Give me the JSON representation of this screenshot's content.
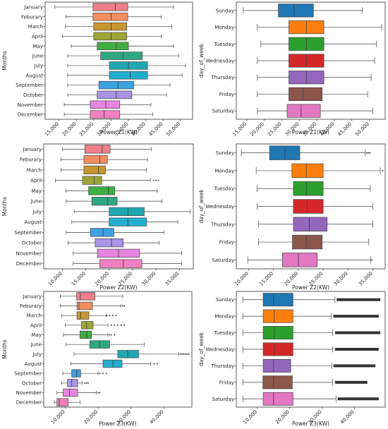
{
  "figure": {
    "background": "#ffffff"
  },
  "palette": {
    "month": [
      "#ee7f89",
      "#f18f5f",
      "#c7972f",
      "#9da537",
      "#3fae43",
      "#2ea882",
      "#20a8b0",
      "#22aecf",
      "#3ba2e0",
      "#a994e8",
      "#e686e0",
      "#f27fbf"
    ],
    "weekday": [
      "#1f77b4",
      "#ff7f0e",
      "#2ca02c",
      "#d62728",
      "#9467bd",
      "#8c564b",
      "#e377c2"
    ]
  },
  "chart_data": [
    {
      "id": "p1",
      "type": "boxplot",
      "orientation": "horizontal",
      "xlabel": "Power Z1(KW)",
      "ylabel": "Months",
      "xlim": [
        11000,
        53500
      ],
      "xticks": [
        15000,
        20000,
        25000,
        30000,
        35000,
        40000,
        45000,
        50000
      ],
      "xtick_labels": [
        "15,000",
        "20,000",
        "25,000",
        "30,000",
        "35,000",
        "40,000",
        "45,000",
        "50,000"
      ],
      "categories": [
        "January",
        "Feburary",
        "March",
        "April",
        "May",
        "June",
        "July",
        "August",
        "September",
        "October",
        "November",
        "December"
      ],
      "boxes": [
        {
          "whislo": 13800,
          "q1": 24800,
          "med": 31200,
          "q3": 34800,
          "whishi": 48000
        },
        {
          "whislo": 17000,
          "q1": 24800,
          "med": 30000,
          "q3": 34800,
          "whishi": 44500
        },
        {
          "whislo": 16800,
          "q1": 25000,
          "med": 30000,
          "q3": 34500,
          "whishi": 47500
        },
        {
          "whislo": 16000,
          "q1": 25000,
          "med": 30000,
          "q3": 34500,
          "whishi": 44500
        },
        {
          "whislo": 18500,
          "q1": 26000,
          "med": 31500,
          "q3": 35000,
          "whishi": 48000
        },
        {
          "whislo": 17500,
          "q1": 27000,
          "med": 33500,
          "q3": 39000,
          "whishi": 49500
        },
        {
          "whislo": 17500,
          "q1": 29500,
          "med": 35000,
          "q3": 40500,
          "whishi": 51500
        },
        {
          "whislo": 17500,
          "q1": 29500,
          "med": 35500,
          "q3": 40500,
          "whishi": 50500
        },
        {
          "whislo": 17500,
          "q1": 26500,
          "med": 32000,
          "q3": 36500,
          "whishi": 47000
        },
        {
          "whislo": 17500,
          "q1": 26000,
          "med": 31500,
          "q3": 36000,
          "whishi": 46000
        },
        {
          "whislo": 16500,
          "q1": 24000,
          "med": 28500,
          "q3": 32500,
          "whishi": 41500
        },
        {
          "whislo": 16500,
          "q1": 24000,
          "med": 28000,
          "q3": 32500,
          "whishi": 42000
        }
      ],
      "fliers": [
        [],
        [],
        [],
        [],
        [],
        [],
        [],
        [],
        [],
        [],
        [],
        []
      ]
    },
    {
      "id": "p2",
      "type": "boxplot",
      "orientation": "horizontal",
      "xlabel": "Power Z1(KW)",
      "ylabel": "day_of_week",
      "xlim": [
        12000,
        54500
      ],
      "xticks": [
        15000,
        20000,
        25000,
        30000,
        35000,
        40000,
        45000,
        50000
      ],
      "xtick_labels": [
        "15,000",
        "20,000",
        "25,000",
        "30,000",
        "35,000",
        "40,000",
        "45,000",
        "50,000"
      ],
      "categories": [
        "Sunday",
        "Monday",
        "Tuesday",
        "Wednesday",
        "Thursday",
        "Friday",
        "Saturday"
      ],
      "boxes": [
        {
          "whislo": 14000,
          "q1": 24000,
          "med": 28500,
          "q3": 34000,
          "whishi": 48000
        },
        {
          "whislo": 18000,
          "q1": 27000,
          "med": 32000,
          "q3": 37000,
          "whishi": 53500
        },
        {
          "whislo": 19000,
          "q1": 27000,
          "med": 32000,
          "q3": 37000,
          "whishi": 52000
        },
        {
          "whislo": 18000,
          "q1": 27000,
          "med": 32000,
          "q3": 37000,
          "whishi": 51500
        },
        {
          "whislo": 18000,
          "q1": 27000,
          "med": 32000,
          "q3": 37000,
          "whishi": 50500
        },
        {
          "whislo": 18000,
          "q1": 27000,
          "med": 31000,
          "q3": 36500,
          "whishi": 49500
        },
        {
          "whislo": 18000,
          "q1": 26500,
          "med": 30500,
          "q3": 36000,
          "whishi": 51000
        }
      ],
      "fliers": [
        [],
        [],
        [],
        [],
        [],
        [],
        []
      ]
    },
    {
      "id": "p3",
      "type": "boxplot",
      "orientation": "horizontal",
      "xlabel": "Power Z2(KW)",
      "ylabel": "Months",
      "xlim": [
        6000,
        38000
      ],
      "xticks": [
        10000,
        15000,
        20000,
        25000,
        30000,
        35000
      ],
      "xtick_labels": [
        "10,000",
        "15,000",
        "20,000",
        "25,000",
        "30,000",
        "35,000"
      ],
      "categories": [
        "January",
        "Feburary",
        "March",
        "April",
        "May",
        "June",
        "July",
        "August",
        "September",
        "October",
        "November",
        "December"
      ],
      "boxes": [
        {
          "whislo": 10000,
          "q1": 14800,
          "med": 18500,
          "q3": 20200,
          "whishi": 29000
        },
        {
          "whislo": 9700,
          "q1": 14600,
          "med": 18000,
          "q3": 19600,
          "whishi": 28200
        },
        {
          "whislo": 9700,
          "q1": 14600,
          "med": 17700,
          "q3": 19200,
          "whishi": 28000
        },
        {
          "whislo": 8500,
          "q1": 14300,
          "med": 16800,
          "q3": 18400,
          "whishi": 28800
        },
        {
          "whislo": 10700,
          "q1": 15600,
          "med": 19800,
          "q3": 21200,
          "whishi": 30300
        },
        {
          "whislo": 10800,
          "q1": 16300,
          "med": 19700,
          "q3": 21700,
          "whishi": 31300
        },
        {
          "whislo": 12500,
          "q1": 20000,
          "med": 24000,
          "q3": 27500,
          "whishi": 37300
        },
        {
          "whislo": 12000,
          "q1": 20000,
          "med": 24000,
          "q3": 28000,
          "whishi": 34700
        },
        {
          "whislo": 10800,
          "q1": 16000,
          "med": 18700,
          "q3": 21000,
          "whishi": 31700
        },
        {
          "whislo": 11200,
          "q1": 17000,
          "med": 20500,
          "q3": 23000,
          "whishi": 30700
        },
        {
          "whislo": 12300,
          "q1": 17500,
          "med": 22000,
          "q3": 26500,
          "whishi": 35500
        },
        {
          "whislo": 12300,
          "q1": 18000,
          "med": 23000,
          "q3": 27000,
          "whishi": 35500
        }
      ],
      "fliers": [
        [],
        [],
        [],
        [
          29500,
          30000,
          30500
        ],
        [],
        [],
        [],
        [],
        [],
        [],
        [],
        []
      ]
    },
    {
      "id": "p4",
      "type": "boxplot",
      "orientation": "horizontal",
      "xlabel": "Power Z2(KW)",
      "ylabel": "day_of_week",
      "xlim": [
        7500,
        37500
      ],
      "xticks": [
        10000,
        15000,
        20000,
        25000,
        30000,
        35000
      ],
      "xtick_labels": [
        "10,000",
        "15,000",
        "20,000",
        "25,000",
        "30,000",
        "35,000"
      ],
      "categories": [
        "Sunday",
        "Monday",
        "Tuesday",
        "Wednesday",
        "Thursday",
        "Friday",
        "Saturday"
      ],
      "boxes": [
        {
          "whislo": 8500,
          "q1": 14200,
          "med": 17300,
          "q3": 20300,
          "whishi": 33500
        },
        {
          "whislo": 11500,
          "q1": 18700,
          "med": 21600,
          "q3": 25000,
          "whishi": 36500
        },
        {
          "whislo": 11700,
          "q1": 19000,
          "med": 21600,
          "q3": 25000,
          "whishi": 34500
        },
        {
          "whislo": 11700,
          "q1": 19000,
          "med": 21800,
          "q3": 25000,
          "whishi": 35000
        },
        {
          "whislo": 12000,
          "q1": 19000,
          "med": 22200,
          "q3": 25800,
          "whishi": 35000
        },
        {
          "whislo": 12000,
          "q1": 18800,
          "med": 21600,
          "q3": 24800,
          "whishi": 34200
        },
        {
          "whislo": 9800,
          "q1": 16800,
          "med": 20000,
          "q3": 23800,
          "whishi": 34600
        }
      ],
      "fliers": [
        [
          33800,
          34100,
          34400
        ],
        [
          37000
        ],
        [],
        [],
        [],
        [],
        [
          34800
        ]
      ]
    },
    {
      "id": "p5",
      "type": "boxplot",
      "orientation": "horizontal",
      "xlabel": "Power Z3(KW)",
      "ylabel": "Months",
      "xlim": [
        3500,
        48500
      ],
      "xticks": [
        10000,
        20000,
        30000,
        40000
      ],
      "xtick_labels": [
        "10,000",
        "20,000",
        "30,000",
        "40,000"
      ],
      "categories": [
        "January",
        "Feburary",
        "March",
        "April",
        "May",
        "June",
        "July",
        "August",
        "September",
        "October",
        "November",
        "December"
      ],
      "boxes": [
        {
          "whislo": 8500,
          "q1": 13500,
          "med": 14600,
          "q3": 19000,
          "whishi": 27500
        },
        {
          "whislo": 8500,
          "q1": 13600,
          "med": 14200,
          "q3": 18300,
          "whishi": 27000
        },
        {
          "whislo": 9000,
          "q1": 13600,
          "med": 14700,
          "q3": 17200,
          "whishi": 22500
        },
        {
          "whislo": 10000,
          "q1": 15000,
          "med": 16500,
          "q3": 18500,
          "whishi": 23000
        },
        {
          "whislo": 9500,
          "q1": 14500,
          "med": 16600,
          "q3": 18000,
          "whishi": 23000
        },
        {
          "whislo": 10300,
          "q1": 17500,
          "med": 20500,
          "q3": 23500,
          "whishi": 34000
        },
        {
          "whislo": 12700,
          "q1": 26000,
          "med": 29000,
          "q3": 32300,
          "whishi": 44500
        },
        {
          "whislo": 11700,
          "q1": 21500,
          "med": 24500,
          "q3": 27300,
          "whishi": 36000
        },
        {
          "whislo": 9300,
          "q1": 12000,
          "med": 13500,
          "q3": 14700,
          "whishi": 20000
        },
        {
          "whislo": 9000,
          "q1": 10700,
          "med": 12000,
          "q3": 13800,
          "whishi": 15200
        },
        {
          "whislo": 7500,
          "q1": 9400,
          "med": 11300,
          "q3": 13800,
          "whishi": 19500
        },
        {
          "whislo": 6700,
          "q1": 7500,
          "med": 8200,
          "q3": 10900,
          "whishi": 14500
        }
      ],
      "fliers": [
        [],
        [
          27500,
          28000
        ],
        [
          22700,
          23500,
          24500,
          25500
        ],
        [
          24000,
          25000,
          26000,
          27000,
          28000
        ],
        [
          23500,
          24000,
          25000
        ],
        [],
        [
          45000,
          45500,
          46000,
          46500,
          47000,
          47500
        ],
        [
          37000,
          38000
        ],
        [
          20500,
          21500,
          22500
        ],
        [
          16000,
          16500,
          17000
        ],
        [
          20000,
          20500
        ],
        []
      ]
    },
    {
      "id": "p6",
      "type": "boxplot",
      "orientation": "horizontal",
      "xlabel": "Power Z3(KW)",
      "ylabel": "day_of_week",
      "xlim": [
        3500,
        49500
      ],
      "xticks": [
        10000,
        20000,
        30000,
        40000
      ],
      "xtick_labels": [
        "10,000",
        "20,000",
        "30,000",
        "40,000"
      ],
      "categories": [
        "Sunday",
        "Monday",
        "Tuesday",
        "Wednesday",
        "Thursday",
        "Friday",
        "Saturday"
      ],
      "boxes": [
        {
          "whislo": 5500,
          "q1": 11800,
          "med": 15000,
          "q3": 21000,
          "whishi": 34000
        },
        {
          "whislo": 5500,
          "q1": 11800,
          "med": 15200,
          "q3": 21000,
          "whishi": 32800
        },
        {
          "whislo": 5500,
          "q1": 11800,
          "med": 15200,
          "q3": 21000,
          "whishi": 33300
        },
        {
          "whislo": 5500,
          "q1": 11800,
          "med": 15200,
          "q3": 21000,
          "whishi": 33300
        },
        {
          "whislo": 5500,
          "q1": 11800,
          "med": 15000,
          "q3": 20300,
          "whishi": 33000
        },
        {
          "whislo": 5500,
          "q1": 11700,
          "med": 15000,
          "q3": 20800,
          "whishi": 33300
        },
        {
          "whislo": 5500,
          "q1": 11800,
          "med": 15000,
          "q3": 21000,
          "whishi": 34300
        }
      ],
      "flier_ranges": [
        [
          34500,
          48000
        ],
        [
          33500,
          47500
        ],
        [
          34000,
          48000
        ],
        [
          34000,
          47500
        ],
        [
          33500,
          46500
        ],
        [
          34000,
          44000
        ],
        [
          34800,
          47500
        ]
      ]
    }
  ]
}
